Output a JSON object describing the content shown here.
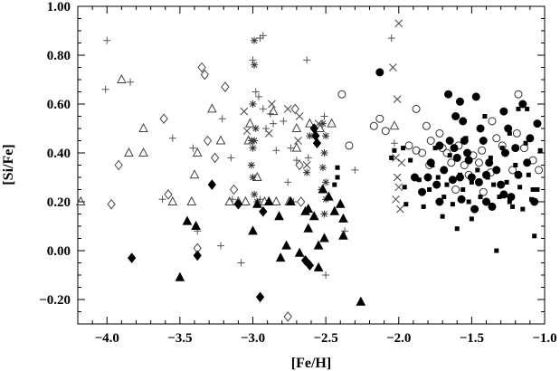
{
  "chart_data": {
    "type": "scatter",
    "title": "",
    "xlabel": "[Fe/H]",
    "ylabel": "[Si/Fe]",
    "xlim": [
      -4.2,
      -1.0
    ],
    "ylim": [
      -0.3,
      1.0
    ],
    "x_ticks": [
      -4.0,
      -3.5,
      -3.0,
      -2.5,
      -2.0,
      -1.5,
      -1.0
    ],
    "x_tick_labels": [
      "−4.0",
      "−3.5",
      "−3.0",
      "−2.5",
      "−2.0",
      "−1.5",
      "−1.0"
    ],
    "y_ticks": [
      -0.2,
      0.0,
      0.2,
      0.4,
      0.6,
      0.8,
      1.0
    ],
    "y_tick_labels": [
      "−0.20",
      "0.00",
      "0.20",
      "0.40",
      "0.60",
      "0.80",
      "1.00"
    ],
    "grid": false,
    "series": [
      {
        "marker": "plus",
        "points": [
          [
            -4.0,
            0.86
          ],
          [
            -4.01,
            0.66
          ],
          [
            -3.84,
            0.69
          ],
          [
            -3.41,
            0.42
          ],
          [
            -3.38,
            0.08
          ],
          [
            -3.21,
            0.54
          ],
          [
            -3.22,
            0.02
          ],
          [
            -3.15,
            0.38
          ],
          [
            -3.0,
            0.78
          ],
          [
            -2.95,
            0.87
          ],
          [
            -2.93,
            0.88
          ],
          [
            -2.96,
            0.63
          ],
          [
            -2.98,
            0.65
          ],
          [
            -2.93,
            0.58
          ],
          [
            -2.91,
            0.5
          ],
          [
            -2.88,
            0.56
          ],
          [
            -2.86,
            0.52
          ],
          [
            -2.84,
            0.41
          ],
          [
            -2.79,
            0.53
          ],
          [
            -2.74,
            0.42
          ],
          [
            -2.7,
            0.37
          ],
          [
            -2.76,
            0.28
          ],
          [
            -2.72,
            0.2
          ],
          [
            -2.63,
            0.78
          ],
          [
            -2.51,
            0.55
          ],
          [
            -2.5,
            -0.1
          ],
          [
            -2.37,
            0.08
          ],
          [
            -2.3,
            0.33
          ],
          [
            -2.05,
            0.87
          ],
          [
            -2.03,
            0.44
          ],
          [
            -3.62,
            0.21
          ],
          [
            -3.55,
            0.46
          ],
          [
            -3.14,
            0.21
          ],
          [
            -3.08,
            -0.05
          ],
          [
            -2.95,
            0.21
          ],
          [
            -2.62,
            0.38
          ]
        ]
      },
      {
        "marker": "asterisk",
        "points": [
          [
            -2.99,
            0.86
          ],
          [
            -2.99,
            0.76
          ],
          [
            -3.0,
            0.6
          ],
          [
            -2.98,
            0.5
          ],
          [
            -2.99,
            0.45
          ],
          [
            -3.0,
            0.42
          ],
          [
            -3.01,
            0.35
          ],
          [
            -3.0,
            0.3
          ],
          [
            -2.99,
            0.23
          ],
          [
            -2.97,
            0.2
          ],
          [
            -3.01,
            0.45
          ],
          [
            -2.52,
            0.52
          ],
          [
            -2.5,
            0.47
          ],
          [
            -2.51,
            0.4
          ],
          [
            -2.52,
            0.34
          ],
          [
            -2.5,
            0.28
          ],
          [
            -2.53,
            0.25
          ],
          [
            -2.5,
            0.21
          ],
          [
            -2.51,
            0.15
          ],
          [
            -2.63,
            0.32
          ],
          [
            -2.61,
            0.47
          ]
        ]
      },
      {
        "marker": "x",
        "points": [
          [
            -2.0,
            0.93
          ],
          [
            -2.04,
            0.75
          ],
          [
            -2.01,
            0.62
          ],
          [
            -2.02,
            0.38
          ],
          [
            -2.01,
            0.3
          ],
          [
            -2.0,
            0.26
          ],
          [
            -2.02,
            0.21
          ],
          [
            -1.99,
            0.17
          ],
          [
            -1.98,
            0.36
          ],
          [
            -2.76,
            0.58
          ],
          [
            -2.68,
            0.55
          ],
          [
            -2.69,
            0.45
          ],
          [
            -2.87,
            0.6
          ],
          [
            -2.89,
            0.48
          ],
          [
            -3.06,
            0.57
          ],
          [
            -2.63,
            0.35
          ],
          [
            -2.55,
            0.52
          ],
          [
            -3.04,
            0.49
          ]
        ]
      },
      {
        "marker": "triangle-open",
        "points": [
          [
            -4.18,
            0.2
          ],
          [
            -3.9,
            0.7
          ],
          [
            -3.85,
            0.4
          ],
          [
            -3.75,
            0.5
          ],
          [
            -3.75,
            0.4
          ],
          [
            -3.55,
            0.2
          ],
          [
            -3.42,
            0.2
          ],
          [
            -3.4,
            0.31
          ],
          [
            -3.38,
            0.4
          ],
          [
            -3.28,
            0.58
          ],
          [
            -3.22,
            0.45
          ],
          [
            -3.16,
            0.2
          ],
          [
            -3.1,
            0.2
          ],
          [
            -3.05,
            0.2
          ],
          [
            -3.03,
            0.45
          ],
          [
            -3.02,
            0.52
          ],
          [
            -2.92,
            0.2
          ],
          [
            -2.86,
            0.57
          ],
          [
            -2.84,
            0.2
          ],
          [
            -2.75,
            0.2
          ],
          [
            -2.7,
            0.42
          ],
          [
            -2.61,
            0.52
          ],
          [
            -2.54,
            0.5
          ],
          [
            -2.46,
            0.52
          ],
          [
            -2.03,
            0.51
          ],
          [
            -2.97,
            0.3
          ],
          [
            -2.7,
            0.5
          ]
        ]
      },
      {
        "marker": "diamond-open",
        "points": [
          [
            -3.97,
            0.19
          ],
          [
            -3.92,
            0.35
          ],
          [
            -3.61,
            0.54
          ],
          [
            -3.58,
            0.23
          ],
          [
            -3.38,
            0.01
          ],
          [
            -3.35,
            0.75
          ],
          [
            -3.33,
            0.72
          ],
          [
            -3.31,
            0.45
          ],
          [
            -3.26,
            0.38
          ],
          [
            -3.19,
            0.67
          ],
          [
            -3.13,
            0.25
          ],
          [
            -2.76,
            -0.27
          ],
          [
            -2.71,
            0.58
          ],
          [
            -2.68,
            0.35
          ],
          [
            -2.67,
            0.2
          ]
        ]
      },
      {
        "marker": "circle-open",
        "points": [
          [
            -2.39,
            0.64
          ],
          [
            -2.34,
            0.43
          ],
          [
            -2.17,
            0.51
          ],
          [
            -2.13,
            0.54
          ],
          [
            -1.93,
            0.43
          ],
          [
            -1.88,
            0.41
          ],
          [
            -1.84,
            0.4
          ],
          [
            -1.81,
            0.51
          ],
          [
            -1.78,
            0.45
          ],
          [
            -1.72,
            0.48
          ],
          [
            -1.7,
            0.42
          ],
          [
            -1.67,
            0.4
          ],
          [
            -1.64,
            0.36
          ],
          [
            -1.59,
            0.43
          ],
          [
            -1.55,
            0.35
          ],
          [
            -1.52,
            0.31
          ],
          [
            -1.49,
            0.39
          ],
          [
            -1.45,
            0.36
          ],
          [
            -1.42,
            0.24
          ],
          [
            -1.37,
            0.32
          ],
          [
            -1.33,
            0.46
          ],
          [
            -1.29,
            0.43
          ],
          [
            -1.22,
            0.33
          ],
          [
            -1.19,
            0.48
          ],
          [
            -1.18,
            0.64
          ],
          [
            -1.14,
            0.42
          ],
          [
            -1.08,
            0.37
          ],
          [
            -1.04,
            0.33
          ],
          [
            -1.88,
            0.58
          ],
          [
            -1.61,
            0.25
          ],
          [
            -1.43,
            0.41
          ],
          [
            -1.79,
            0.35
          ],
          [
            -2.09,
            0.49
          ],
          [
            -1.36,
            0.53
          ]
        ]
      },
      {
        "marker": "circle-filled",
        "points": [
          [
            -2.13,
            0.73
          ],
          [
            -1.89,
            0.3
          ],
          [
            -1.84,
            0.24
          ],
          [
            -1.8,
            0.3
          ],
          [
            -1.78,
            0.36
          ],
          [
            -1.74,
            0.27
          ],
          [
            -1.72,
            0.2
          ],
          [
            -1.69,
            0.33
          ],
          [
            -1.66,
            0.64
          ],
          [
            -1.65,
            0.45
          ],
          [
            -1.63,
            0.29
          ],
          [
            -1.61,
            0.55
          ],
          [
            -1.6,
            0.38
          ],
          [
            -1.58,
            0.61
          ],
          [
            -1.57,
            0.21
          ],
          [
            -1.56,
            0.53
          ],
          [
            -1.55,
            0.45
          ],
          [
            -1.53,
            0.4
          ],
          [
            -1.52,
            0.37
          ],
          [
            -1.5,
            0.3
          ],
          [
            -1.48,
            0.17
          ],
          [
            -1.47,
            0.63
          ],
          [
            -1.45,
            0.28
          ],
          [
            -1.44,
            0.5
          ],
          [
            -1.42,
            0.45
          ],
          [
            -1.4,
            0.2
          ],
          [
            -1.38,
            0.36
          ],
          [
            -1.36,
            0.18
          ],
          [
            -1.33,
            0.33
          ],
          [
            -1.3,
            0.27
          ],
          [
            -1.28,
            0.57
          ],
          [
            -1.27,
            0.4
          ],
          [
            -1.25,
            0.5
          ],
          [
            -1.23,
            0.22
          ],
          [
            -1.2,
            0.42
          ],
          [
            -1.18,
            0.31
          ],
          [
            -1.15,
            0.6
          ],
          [
            -1.12,
            0.36
          ],
          [
            -1.1,
            0.46
          ],
          [
            -1.07,
            0.2
          ],
          [
            -1.05,
            0.52
          ],
          [
            -1.72,
            0.43
          ],
          [
            -1.62,
            0.42
          ],
          [
            -1.4,
            0.31
          ],
          [
            -1.28,
            0.23
          ],
          [
            -1.58,
            0.3
          ]
        ]
      },
      {
        "marker": "square-filled",
        "points": [
          [
            -2.05,
            0.38
          ],
          [
            -2.03,
            0.41
          ],
          [
            -1.97,
            0.42
          ],
          [
            -1.96,
            0.26
          ],
          [
            -1.92,
            0.37
          ],
          [
            -1.86,
            0.29
          ],
          [
            -1.83,
            0.18
          ],
          [
            -1.79,
            0.25
          ],
          [
            -1.77,
            0.35
          ],
          [
            -1.75,
            0.42
          ],
          [
            -1.73,
            0.3
          ],
          [
            -1.69,
            0.22
          ],
          [
            -1.67,
            0.27
          ],
          [
            -1.65,
            0.39
          ],
          [
            -1.63,
            0.19
          ],
          [
            -1.6,
            0.09
          ],
          [
            -1.58,
            0.31
          ],
          [
            -1.56,
            0.25
          ],
          [
            -1.54,
            0.46
          ],
          [
            -1.52,
            0.2
          ],
          [
            -1.5,
            0.28
          ],
          [
            -1.46,
            0.33
          ],
          [
            -1.44,
            0.22
          ],
          [
            -1.41,
            0.55
          ],
          [
            -1.39,
            0.3
          ],
          [
            -1.37,
            0.38
          ],
          [
            -1.35,
            0.27
          ],
          [
            -1.33,
            0.0
          ],
          [
            -1.31,
            0.22
          ],
          [
            -1.29,
            0.42
          ],
          [
            -1.26,
            0.28
          ],
          [
            -1.24,
            0.2
          ],
          [
            -1.22,
            0.18
          ],
          [
            -1.2,
            0.35
          ],
          [
            -1.17,
            0.26
          ],
          [
            -1.15,
            0.17
          ],
          [
            -1.13,
            0.44
          ],
          [
            -1.11,
            0.31
          ],
          [
            -1.09,
            0.21
          ],
          [
            -1.07,
            0.06
          ],
          [
            -1.05,
            0.25
          ],
          [
            -1.03,
            0.41
          ],
          [
            -1.18,
            0.58
          ],
          [
            -1.24,
            0.48
          ],
          [
            -1.08,
            0.25
          ],
          [
            -1.12,
            0.58
          ],
          [
            -2.42,
            0.3
          ],
          [
            -2.42,
            0.34
          ],
          [
            -2.44,
            0.27
          ],
          [
            -1.95,
            0.19
          ],
          [
            -1.7,
            0.14
          ],
          [
            -1.5,
            0.13
          ]
        ]
      },
      {
        "marker": "triangle-filled",
        "points": [
          [
            -3.5,
            -0.11
          ],
          [
            -3.45,
            0.12
          ],
          [
            -3.39,
            0.1
          ],
          [
            -2.97,
            0.19
          ],
          [
            -2.89,
            0.2
          ],
          [
            -2.81,
            -0.03
          ],
          [
            -2.77,
            0.02
          ],
          [
            -2.74,
            0.2
          ],
          [
            -2.68,
            -0.01
          ],
          [
            -2.64,
            0.16
          ],
          [
            -2.62,
            0.09
          ],
          [
            -2.58,
            0.14
          ],
          [
            -2.55,
            -0.07
          ],
          [
            -2.52,
            0.25
          ],
          [
            -2.51,
            0.05
          ],
          [
            -2.48,
            0.22
          ],
          [
            -2.44,
            0.16
          ],
          [
            -2.4,
            0.19
          ],
          [
            -2.38,
            0.13
          ],
          [
            -2.26,
            -0.21
          ],
          [
            -2.62,
            0.17
          ],
          [
            -2.82,
            0.14
          ],
          [
            -3.0,
            0.08
          ],
          [
            -2.55,
            0.02
          ],
          [
            -2.38,
            0.06
          ]
        ]
      },
      {
        "marker": "diamond-filled",
        "points": [
          [
            -3.83,
            -0.03
          ],
          [
            -3.38,
            -0.02
          ],
          [
            -3.28,
            0.27
          ],
          [
            -3.1,
            0.19
          ],
          [
            -2.95,
            -0.19
          ],
          [
            -2.93,
            0.16
          ],
          [
            -2.64,
            -0.04
          ],
          [
            -2.61,
            -0.06
          ],
          [
            -2.58,
            0.5
          ],
          [
            -2.57,
            0.47
          ],
          [
            -2.56,
            0.44
          ]
        ]
      }
    ]
  }
}
